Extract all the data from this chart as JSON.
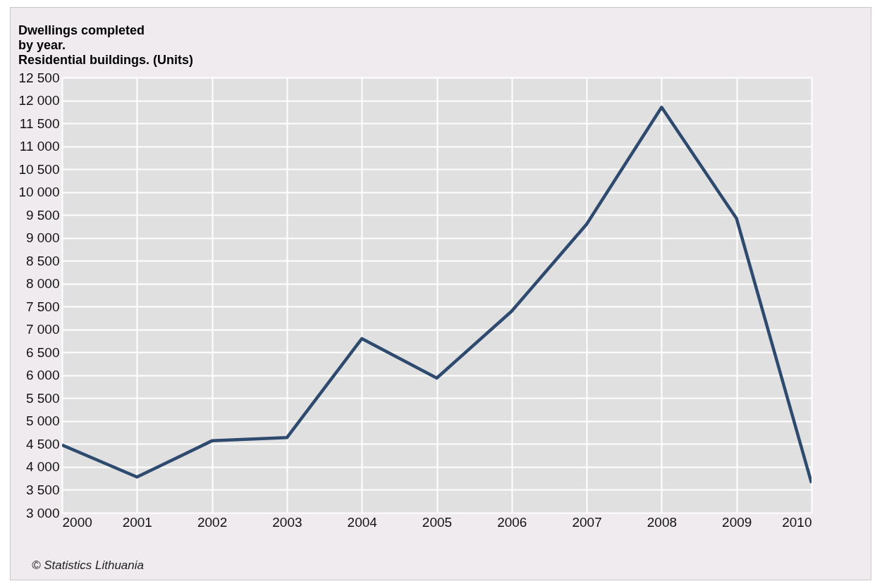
{
  "chart_data": {
    "type": "line",
    "title": "Dwellings completed\nby year.\nResidential buildings. (Units)",
    "x": [
      2000,
      2001,
      2002,
      2003,
      2004,
      2005,
      2006,
      2007,
      2008,
      2009,
      2010
    ],
    "series": [
      {
        "color": "#2e4a6e",
        "values": [
          4480,
          3780,
          4570,
          4640,
          6800,
          5940,
          7400,
          9300,
          11850,
          9420,
          3650
        ]
      }
    ],
    "xlim": [
      2000,
      2010
    ],
    "xticks": [
      2000,
      2001,
      2002,
      2003,
      2004,
      2005,
      2006,
      2007,
      2008,
      2009,
      2010
    ],
    "ylim": [
      3000,
      12500
    ],
    "yticks": [
      {
        "value": 3000,
        "label": "3 000"
      },
      {
        "value": 3500,
        "label": "3 500"
      },
      {
        "value": 4000,
        "label": "4 000"
      },
      {
        "value": 4500,
        "label": "4 500"
      },
      {
        "value": 5000,
        "label": "5 000"
      },
      {
        "value": 5500,
        "label": "5 500"
      },
      {
        "value": 6000,
        "label": "6 000"
      },
      {
        "value": 6500,
        "label": "6 500"
      },
      {
        "value": 7000,
        "label": "7 000"
      },
      {
        "value": 7500,
        "label": "7 500"
      },
      {
        "value": 8000,
        "label": "8 000"
      },
      {
        "value": 8500,
        "label": "8 500"
      },
      {
        "value": 9000,
        "label": "9 000"
      },
      {
        "value": 9500,
        "label": "9 500"
      },
      {
        "value": 10000,
        "label": "10 000"
      },
      {
        "value": 10500,
        "label": "10 500"
      },
      {
        "value": 11000,
        "label": "11 000"
      },
      {
        "value": 11500,
        "label": "11 500"
      },
      {
        "value": 12000,
        "label": "12 000"
      },
      {
        "value": 12500,
        "label": "12 500"
      }
    ],
    "grid": true,
    "line_style": "solid",
    "annotations": [
      "© Statistics Lithuania"
    ]
  }
}
